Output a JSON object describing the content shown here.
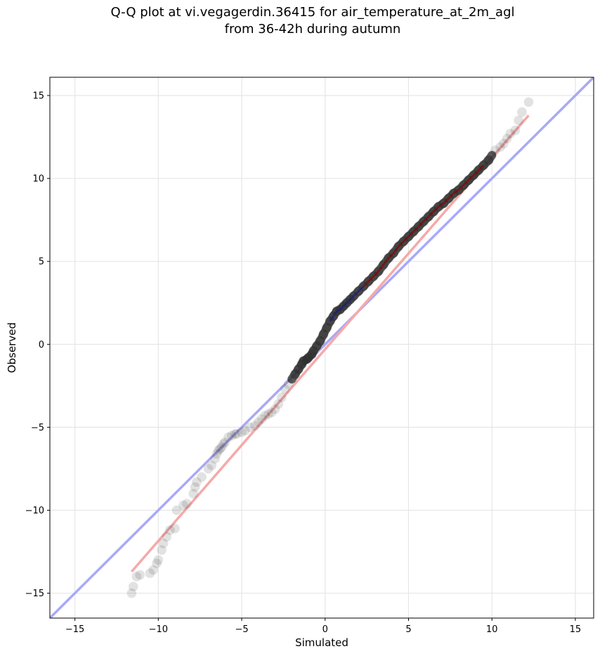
{
  "chart_data": {
    "type": "scatter",
    "title": [
      "Q-Q plot at vi.vegagerdin.36415 for air_temperature_at_2m_agl",
      "from 36-42h during autumn"
    ],
    "xlabel": "Simulated",
    "ylabel": "Observed",
    "xlim": [
      -16.5,
      16.1
    ],
    "ylim": [
      -16.5,
      16.1
    ],
    "xticks": [
      -15,
      -10,
      -5,
      0,
      5,
      10,
      15
    ],
    "yticks": [
      -15,
      -10,
      -5,
      0,
      5,
      10,
      15
    ],
    "xtick_labels": [
      "−15",
      "−10",
      "−5",
      "0",
      "5",
      "10",
      "15"
    ],
    "ytick_labels": [
      "−15",
      "−10",
      "−5",
      "0",
      "5",
      "10",
      "15"
    ],
    "grid": true,
    "colors": {
      "points": "#333333",
      "identity_line": "#a9a9f5",
      "fit_line": "#f5a9a9",
      "dense_red": "#8b0000",
      "dense_blue": "#1a1a8c"
    },
    "reference_lines": {
      "identity": {
        "x": [
          -16.5,
          16.1
        ],
        "y": [
          -16.5,
          16.1
        ]
      },
      "fit": {
        "x": [
          -11.6,
          12.2
        ],
        "y": [
          -13.7,
          13.8
        ]
      }
    },
    "points": {
      "x": [
        -11.6,
        -11.5,
        -11.3,
        -11.1,
        -10.5,
        -10.3,
        -10.1,
        -10.0,
        -9.8,
        -9.7,
        -9.5,
        -9.3,
        -9.0,
        -8.9,
        -8.5,
        -8.3,
        -7.9,
        -7.8,
        -7.7,
        -7.4,
        -7.0,
        -6.8,
        -6.6,
        -6.5,
        -6.4,
        -6.3,
        -6.2,
        -6.1,
        -6.0,
        -5.8,
        -5.6,
        -5.4,
        -5.3,
        -5.0,
        -4.8,
        -4.5,
        -4.2,
        -4.0,
        -3.8,
        -3.6,
        -3.4,
        -3.2,
        -3.0,
        -2.8,
        -2.6,
        -2.4,
        -2.2,
        -2.0,
        -1.8,
        -1.6,
        -1.4,
        -1.3,
        -1.1,
        -1.0,
        -0.8,
        -0.7,
        -0.5,
        -0.3,
        -0.1,
        0.1,
        0.3,
        0.5,
        0.7,
        0.9,
        1.1,
        1.3,
        1.5,
        1.7,
        2.0,
        2.3,
        2.6,
        2.9,
        3.2,
        3.5,
        3.8,
        4.1,
        4.4,
        4.7,
        5.0,
        5.3,
        5.6,
        5.9,
        6.2,
        6.5,
        6.8,
        7.1,
        7.4,
        7.7,
        8.0,
        8.3,
        8.6,
        8.9,
        9.2,
        9.5,
        9.8,
        10.0,
        10.2,
        10.5,
        10.7,
        10.9,
        11.1,
        11.4,
        11.6,
        11.8,
        12.2
      ],
      "y": [
        -15.0,
        -14.6,
        -14.0,
        -13.9,
        -13.8,
        -13.6,
        -13.2,
        -13.0,
        -12.4,
        -12.0,
        -11.6,
        -11.2,
        -11.1,
        -10.0,
        -9.7,
        -9.6,
        -9.0,
        -8.6,
        -8.3,
        -8.0,
        -7.5,
        -7.3,
        -6.9,
        -6.6,
        -6.4,
        -6.3,
        -6.2,
        -6.0,
        -5.9,
        -5.6,
        -5.5,
        -5.4,
        -5.4,
        -5.3,
        -5.2,
        -5.0,
        -4.9,
        -4.7,
        -4.5,
        -4.3,
        -4.2,
        -4.1,
        -3.9,
        -3.6,
        -3.2,
        -2.7,
        -2.4,
        -2.1,
        -1.8,
        -1.5,
        -1.2,
        -1.0,
        -0.9,
        -0.8,
        -0.6,
        -0.4,
        -0.1,
        0.2,
        0.6,
        1.0,
        1.4,
        1.7,
        2.0,
        2.1,
        2.3,
        2.5,
        2.7,
        2.9,
        3.2,
        3.5,
        3.8,
        4.1,
        4.4,
        4.8,
        5.2,
        5.5,
        5.9,
        6.2,
        6.5,
        6.8,
        7.1,
        7.4,
        7.7,
        8.0,
        8.3,
        8.5,
        8.8,
        9.1,
        9.3,
        9.6,
        9.9,
        10.2,
        10.5,
        10.8,
        11.1,
        11.4,
        11.7,
        11.9,
        12.1,
        12.4,
        12.7,
        12.9,
        13.5,
        14.0,
        14.6
      ]
    }
  }
}
